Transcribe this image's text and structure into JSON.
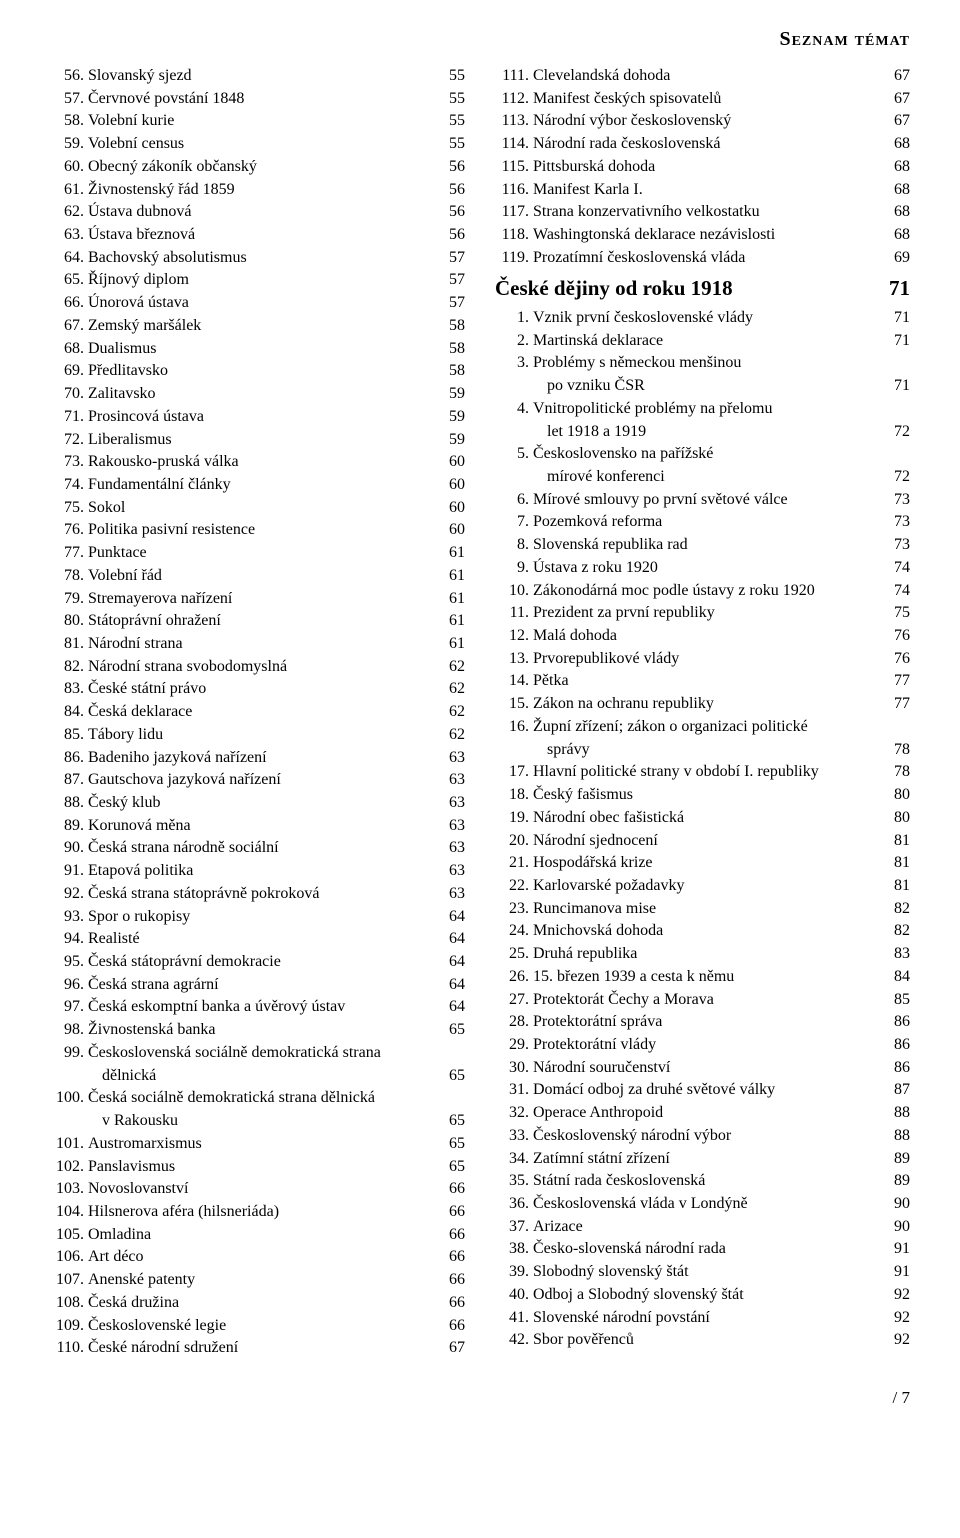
{
  "header": "Seznam témat",
  "footer": "/ 7",
  "left": [
    {
      "n": "56.",
      "t": "Slovanský sjezd",
      "p": "55"
    },
    {
      "n": "57.",
      "t": "Červnové povstání 1848",
      "p": "55"
    },
    {
      "n": "58.",
      "t": "Volební kurie",
      "p": "55"
    },
    {
      "n": "59.",
      "t": "Volební census",
      "p": "55"
    },
    {
      "n": "60.",
      "t": "Obecný zákoník občanský",
      "p": "56"
    },
    {
      "n": "61.",
      "t": "Živnostenský řád 1859",
      "p": "56"
    },
    {
      "n": "62.",
      "t": "Ústava dubnová",
      "p": "56"
    },
    {
      "n": "63.",
      "t": "Ústava březnová",
      "p": "56"
    },
    {
      "n": "64.",
      "t": "Bachovský absolutismus",
      "p": "57"
    },
    {
      "n": "65.",
      "t": "Říjnový diplom",
      "p": "57"
    },
    {
      "n": "66.",
      "t": "Únorová ústava",
      "p": "57"
    },
    {
      "n": "67.",
      "t": "Zemský maršálek",
      "p": "58"
    },
    {
      "n": "68.",
      "t": "Dualismus",
      "p": "58"
    },
    {
      "n": "69.",
      "t": "Předlitavsko",
      "p": "58"
    },
    {
      "n": "70.",
      "t": "Zalitavsko",
      "p": "59"
    },
    {
      "n": "71.",
      "t": "Prosincová ústava",
      "p": "59"
    },
    {
      "n": "72.",
      "t": "Liberalismus",
      "p": "59"
    },
    {
      "n": "73.",
      "t": "Rakousko-pruská válka",
      "p": "60"
    },
    {
      "n": "74.",
      "t": "Fundamentální články",
      "p": "60"
    },
    {
      "n": "75.",
      "t": "Sokol",
      "p": "60"
    },
    {
      "n": "76.",
      "t": "Politika pasivní resistence",
      "p": "60"
    },
    {
      "n": "77.",
      "t": "Punktace",
      "p": "61"
    },
    {
      "n": "78.",
      "t": "Volební řád",
      "p": "61"
    },
    {
      "n": "79.",
      "t": "Stremayerova nařízení",
      "p": "61"
    },
    {
      "n": "80.",
      "t": "Státoprávní ohražení",
      "p": "61"
    },
    {
      "n": "81.",
      "t": "Národní strana",
      "p": "61"
    },
    {
      "n": "82.",
      "t": "Národní strana svobodomyslná",
      "p": "62"
    },
    {
      "n": "83.",
      "t": "České státní právo",
      "p": "62"
    },
    {
      "n": "84.",
      "t": "Česká deklarace",
      "p": "62"
    },
    {
      "n": "85.",
      "t": "Tábory lidu",
      "p": "62"
    },
    {
      "n": "86.",
      "t": "Badeniho jazyková nařízení",
      "p": "63"
    },
    {
      "n": "87.",
      "t": "Gautschova jazyková nařízení",
      "p": "63"
    },
    {
      "n": "88.",
      "t": "Český klub",
      "p": "63"
    },
    {
      "n": "89.",
      "t": "Korunová měna",
      "p": "63"
    },
    {
      "n": "90.",
      "t": "Česká strana národně sociální",
      "p": "63"
    },
    {
      "n": "91.",
      "t": "Etapová politika",
      "p": "63"
    },
    {
      "n": "92.",
      "t": "Česká strana státoprávně pokroková",
      "p": "63"
    },
    {
      "n": "93.",
      "t": "Spor o rukopisy",
      "p": "64"
    },
    {
      "n": "94.",
      "t": "Realisté",
      "p": "64"
    },
    {
      "n": "95.",
      "t": "Česká státoprávní demokracie",
      "p": "64"
    },
    {
      "n": "96.",
      "t": "Česká strana agrární",
      "p": "64"
    },
    {
      "n": "97.",
      "t": "Česká eskomptní banka a úvěrový ústav",
      "p": "64"
    },
    {
      "n": "98.",
      "t": "Živnostenská banka",
      "p": "65"
    },
    {
      "n": "99.",
      "t": "Československá sociálně demokratická strana",
      "p": "",
      "cont": "dělnická",
      "cp": "65"
    },
    {
      "n": "100.",
      "t": "Česká sociálně demokratická strana dělnická",
      "p": "",
      "cont": "v Rakousku",
      "cp": "65"
    },
    {
      "n": "101.",
      "t": "Austromarxismus",
      "p": "65"
    },
    {
      "n": "102.",
      "t": "Panslavismus",
      "p": "65"
    },
    {
      "n": "103.",
      "t": "Novoslovanství",
      "p": "66"
    },
    {
      "n": "104.",
      "t": "Hilsnerova aféra (hilsneriáda)",
      "p": "66"
    },
    {
      "n": "105.",
      "t": "Omladina",
      "p": "66"
    },
    {
      "n": "106.",
      "t": "Art déco",
      "p": "66"
    },
    {
      "n": "107.",
      "t": "Anenské patenty",
      "p": "66"
    },
    {
      "n": "108.",
      "t": "Česká družina",
      "p": "66"
    },
    {
      "n": "109.",
      "t": "Československé legie",
      "p": "66"
    },
    {
      "n": "110.",
      "t": "České národní sdružení",
      "p": "67"
    }
  ],
  "rightTop": [
    {
      "n": "111.",
      "t": "Clevelandská dohoda",
      "p": "67"
    },
    {
      "n": "112.",
      "t": "Manifest českých spisovatelů",
      "p": "67"
    },
    {
      "n": "113.",
      "t": "Národní výbor československý",
      "p": "67"
    },
    {
      "n": "114.",
      "t": "Národní rada československá",
      "p": "68"
    },
    {
      "n": "115.",
      "t": "Pittsburská dohoda",
      "p": "68"
    },
    {
      "n": "116.",
      "t": "Manifest Karla I.",
      "p": "68"
    },
    {
      "n": "117.",
      "t": "Strana konzervativního velkostatku",
      "p": "68"
    },
    {
      "n": "118.",
      "t": "Washingtonská deklarace nezávislosti",
      "p": "68"
    },
    {
      "n": "119.",
      "t": "Prozatímní československá vláda",
      "p": "69"
    }
  ],
  "section": {
    "t": "České dějiny od roku 1918",
    "p": "71"
  },
  "rightBottom": [
    {
      "n": "1.",
      "t": "Vznik první československé vlády",
      "p": "71"
    },
    {
      "n": "2.",
      "t": "Martinská deklarace",
      "p": "71"
    },
    {
      "n": "3.",
      "t": "Problémy s německou menšinou",
      "p": "",
      "cont": "po vzniku ČSR",
      "cp": "71"
    },
    {
      "n": "4.",
      "t": "Vnitropolitické problémy na přelomu",
      "p": "",
      "cont": "let 1918 a 1919",
      "cp": "72"
    },
    {
      "n": "5.",
      "t": "Československo na pařížské",
      "p": "",
      "cont": "mírové konferenci",
      "cp": "72"
    },
    {
      "n": "6.",
      "t": "Mírové smlouvy po první světové válce",
      "p": "73"
    },
    {
      "n": "7.",
      "t": "Pozemková reforma",
      "p": "73"
    },
    {
      "n": "8.",
      "t": "Slovenská republika rad",
      "p": "73"
    },
    {
      "n": "9.",
      "t": "Ústava z roku 1920",
      "p": "74"
    },
    {
      "n": "10.",
      "t": "Zákonodárná moc podle ústavy z roku 1920",
      "p": "74"
    },
    {
      "n": "11.",
      "t": "Prezident za první republiky",
      "p": "75"
    },
    {
      "n": "12.",
      "t": "Malá dohoda",
      "p": "76"
    },
    {
      "n": "13.",
      "t": "Prvorepublikové vlády",
      "p": "76"
    },
    {
      "n": "14.",
      "t": "Pětka",
      "p": "77"
    },
    {
      "n": "15.",
      "t": "Zákon na ochranu republiky",
      "p": "77"
    },
    {
      "n": "16.",
      "t": "Župní zřízení; zákon o organizaci politické",
      "p": "",
      "cont": "správy",
      "cp": "78"
    },
    {
      "n": "17.",
      "t": "Hlavní politické strany v období I. republiky",
      "p": "78"
    },
    {
      "n": "18.",
      "t": "Český fašismus",
      "p": "80"
    },
    {
      "n": "19.",
      "t": "Národní obec fašistická",
      "p": "80"
    },
    {
      "n": "20.",
      "t": "Národní sjednocení",
      "p": "81"
    },
    {
      "n": "21.",
      "t": "Hospodářská krize",
      "p": "81"
    },
    {
      "n": "22.",
      "t": "Karlovarské požadavky",
      "p": "81"
    },
    {
      "n": "23.",
      "t": "Runcimanova mise",
      "p": "82"
    },
    {
      "n": "24.",
      "t": "Mnichovská dohoda",
      "p": "82"
    },
    {
      "n": "25.",
      "t": "Druhá republika",
      "p": "83"
    },
    {
      "n": "26.",
      "t": "15. březen 1939 a cesta k němu",
      "p": "84"
    },
    {
      "n": "27.",
      "t": "Protektorát Čechy a Morava",
      "p": "85"
    },
    {
      "n": "28.",
      "t": "Protektorátní správa",
      "p": "86"
    },
    {
      "n": "29.",
      "t": "Protektorátní vlády",
      "p": "86"
    },
    {
      "n": "30.",
      "t": "Národní souručenství",
      "p": "86"
    },
    {
      "n": "31.",
      "t": "Domácí odboj za druhé světové války",
      "p": "87"
    },
    {
      "n": "32.",
      "t": "Operace Anthropoid",
      "p": "88"
    },
    {
      "n": "33.",
      "t": "Československý národní výbor",
      "p": "88"
    },
    {
      "n": "34.",
      "t": "Zatímní státní zřízení",
      "p": "89"
    },
    {
      "n": "35.",
      "t": "Státní rada československá",
      "p": "89"
    },
    {
      "n": "36.",
      "t": "Československá vláda v Londýně",
      "p": "90"
    },
    {
      "n": "37.",
      "t": "Arizace",
      "p": "90"
    },
    {
      "n": "38.",
      "t": "Česko-slovenská národní rada",
      "p": "91"
    },
    {
      "n": "39.",
      "t": "Slobodný slovenský štát",
      "p": "91"
    },
    {
      "n": "40.",
      "t": "Odboj a Slobodný slovenský štát",
      "p": "92"
    },
    {
      "n": "41.",
      "t": "Slovenské národní povstání",
      "p": "92"
    },
    {
      "n": "42.",
      "t": "Sbor pověřenců",
      "p": "92"
    }
  ]
}
